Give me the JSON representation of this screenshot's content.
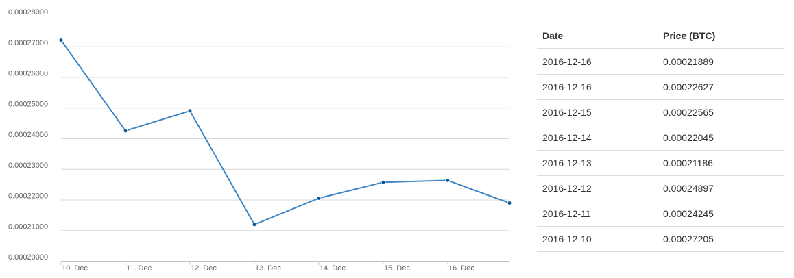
{
  "chart_data": {
    "type": "line",
    "x": [
      "2016-12-10",
      "2016-12-11",
      "2016-12-12",
      "2016-12-13",
      "2016-12-14",
      "2016-12-15",
      "2016-12-16",
      "2016-12-16"
    ],
    "xticks": [
      "10. Dec",
      "11. Dec",
      "12. Dec",
      "13. Dec",
      "14. Dec",
      "15. Dec",
      "16. Dec"
    ],
    "yticks": [
      "0.00020000",
      "0.00021000",
      "0.00022000",
      "0.00023000",
      "0.00024000",
      "0.00025000",
      "0.00026000",
      "0.00027000",
      "0.00028000"
    ],
    "ylim": [
      0.0002,
      0.00028
    ],
    "series": [
      {
        "values": [
          0.00027205,
          0.00024245,
          0.00024897,
          0.00021186,
          0.00022045,
          0.00022565,
          0.00022627,
          0.00021889
        ]
      }
    ],
    "line_color": "#3d85c6",
    "marker_color": "#0d5a93",
    "grid": true
  },
  "table": {
    "headers": [
      "Date",
      "Price (BTC)"
    ],
    "rows": [
      [
        "2016-12-16",
        "0.00021889"
      ],
      [
        "2016-12-16",
        "0.00022627"
      ],
      [
        "2016-12-15",
        "0.00022565"
      ],
      [
        "2016-12-14",
        "0.00022045"
      ],
      [
        "2016-12-13",
        "0.00021186"
      ],
      [
        "2016-12-12",
        "0.00024897"
      ],
      [
        "2016-12-11",
        "0.00024245"
      ],
      [
        "2016-12-10",
        "0.00027205"
      ]
    ]
  }
}
